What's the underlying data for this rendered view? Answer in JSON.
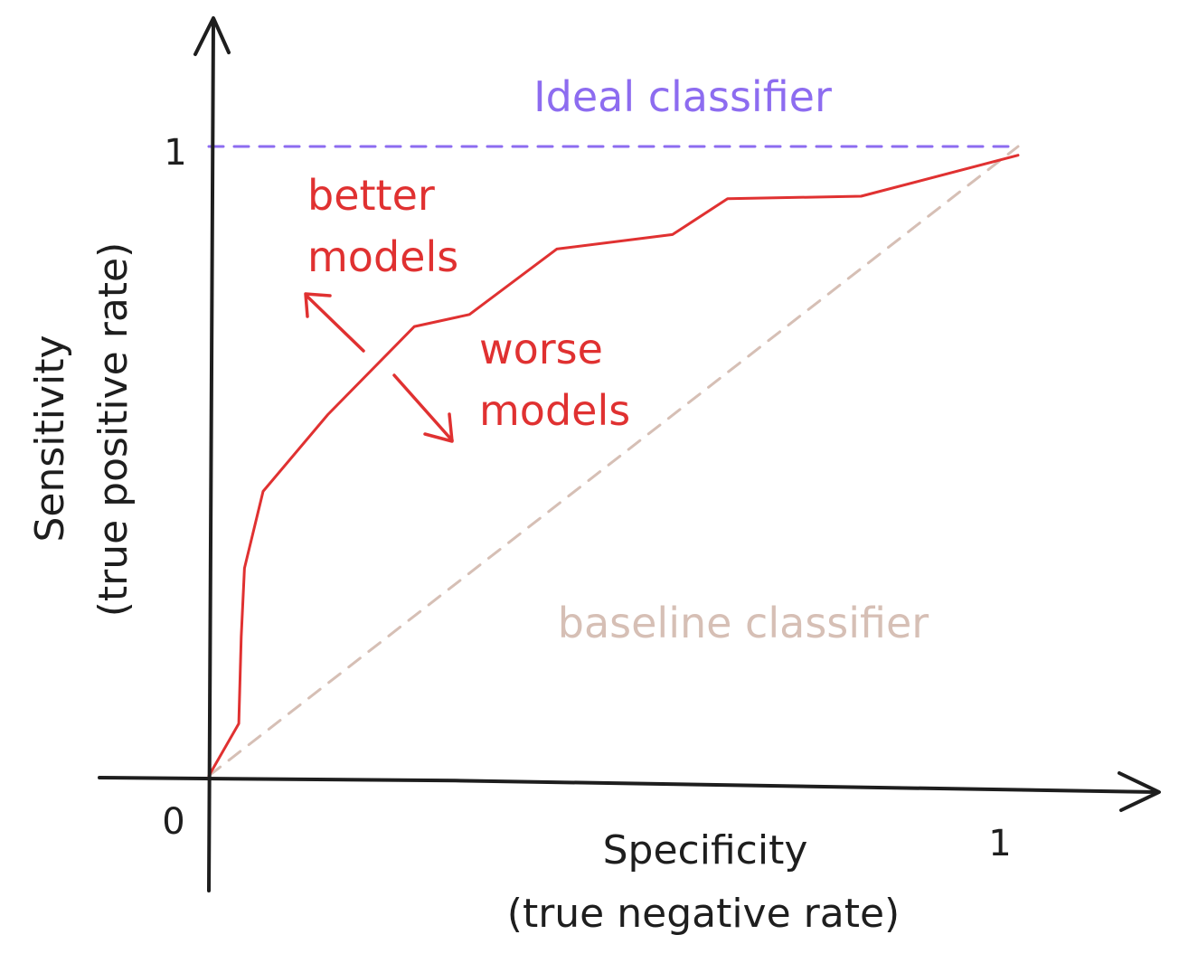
{
  "chart_data": {
    "type": "line",
    "title": "",
    "xlabel": [
      "Specificity",
      "(true negative rate)"
    ],
    "ylabel": [
      "Sensitivity",
      "(true positive rate)"
    ],
    "x_ticks": [
      "0",
      "1"
    ],
    "y_ticks": [
      "1"
    ],
    "xlim": [
      0,
      1
    ],
    "ylim": [
      0,
      1
    ],
    "grid": false,
    "series": [
      {
        "role": "roc-curve",
        "style": "solid",
        "color": "#e03131",
        "x": [
          0,
          0.037,
          0.04,
          0.044,
          0.067,
          0.147,
          0.254,
          0.322,
          0.43,
          0.573,
          0.641,
          0.806,
          1.0
        ],
        "y": [
          0,
          0.083,
          0.221,
          0.33,
          0.452,
          0.574,
          0.714,
          0.733,
          0.837,
          0.86,
          0.917,
          0.921,
          0.986
        ]
      },
      {
        "name": "Ideal classifier",
        "style": "dashed",
        "color": "#8d6cf0",
        "x": [
          0,
          1.0
        ],
        "y": [
          1,
          1
        ]
      },
      {
        "name": "baseline classifier",
        "style": "dashed",
        "color": "#d6bfb5",
        "x": [
          0,
          1.0
        ],
        "y": [
          0,
          1
        ]
      }
    ],
    "annotations": [
      {
        "text": [
          "better",
          "models"
        ],
        "color": "#e03131",
        "arrow": "up-left"
      },
      {
        "text": [
          "worse",
          "models"
        ],
        "color": "#e03131",
        "arrow": "down-right"
      }
    ],
    "axis_color": "#1e1e1e"
  }
}
